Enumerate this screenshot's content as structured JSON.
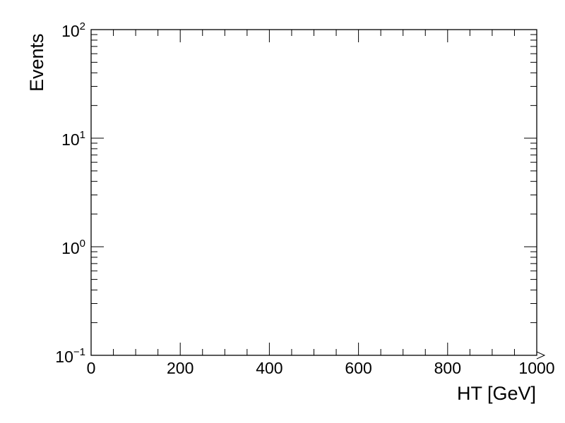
{
  "chart_data": {
    "type": "line",
    "title": "",
    "xlabel": "HT [GeV]",
    "ylabel": "Events",
    "xlim": [
      0,
      1000
    ],
    "ylim": [
      0.1,
      100
    ],
    "y_scale": "log",
    "grid": false,
    "legend": "none",
    "series": [],
    "x_ticks": [
      {
        "value": 0,
        "label": "0"
      },
      {
        "value": 200,
        "label": "200"
      },
      {
        "value": 400,
        "label": "400"
      },
      {
        "value": 600,
        "label": "600"
      },
      {
        "value": 800,
        "label": "800"
      },
      {
        "value": 1000,
        "label": "1000"
      }
    ],
    "y_ticks": [
      {
        "value": 0.1,
        "base": "10",
        "exp": "−1"
      },
      {
        "value": 1,
        "base": "10",
        "exp": "0"
      },
      {
        "value": 10,
        "base": "10",
        "exp": "1"
      },
      {
        "value": 100,
        "base": "10",
        "exp": "2"
      }
    ],
    "colors": {
      "axis": "#000000",
      "background": "#ffffff"
    }
  }
}
